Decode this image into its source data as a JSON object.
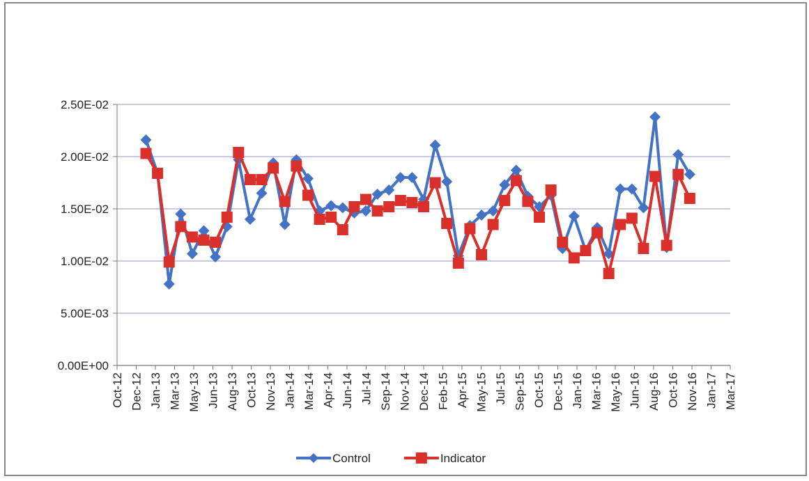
{
  "chart_data": {
    "type": "line",
    "x": [
      "Dec-12",
      "Jan-13",
      "Feb-13",
      "Mar-13",
      "Apr-13",
      "May-13",
      "Jun-13",
      "Jul-13",
      "Aug-13",
      "Sep-13",
      "Oct-13",
      "Nov-13",
      "Dec-13",
      "Jan-14",
      "Feb-14",
      "Mar-14",
      "Apr-14",
      "May-14",
      "Jun-14",
      "Jul-14",
      "Aug-14",
      "Sep-14",
      "Oct-14",
      "Nov-14",
      "Dec-14",
      "Jan-15",
      "Feb-15",
      "Mar-15",
      "Apr-15",
      "May-15",
      "Jun-15",
      "Jul-15",
      "Aug-15",
      "Sep-15",
      "Oct-15",
      "Nov-15",
      "Dec-15",
      "Jan-16",
      "Feb-16",
      "Mar-16",
      "Apr-16",
      "May-16",
      "Jun-16",
      "Jul-16",
      "Aug-16",
      "Sep-16",
      "Oct-16",
      "Nov-16"
    ],
    "series": [
      {
        "name": "Control",
        "color": "#4472c4",
        "marker": "diamond",
        "values": [
          0.0216,
          0.0184,
          0.0078,
          0.0145,
          0.0107,
          0.0129,
          0.0104,
          0.0133,
          0.0197,
          0.014,
          0.0165,
          0.0194,
          0.0135,
          0.0197,
          0.0179,
          0.0148,
          0.0153,
          0.0151,
          0.0146,
          0.0148,
          0.0164,
          0.0168,
          0.018,
          0.018,
          0.0159,
          0.0211,
          0.0176,
          0.0105,
          0.0134,
          0.0144,
          0.0148,
          0.0173,
          0.0187,
          0.0162,
          0.0152,
          0.0163,
          0.0112,
          0.0143,
          0.011,
          0.0132,
          0.0107,
          0.0169,
          0.0169,
          0.0151,
          0.0238,
          0.0113,
          0.0202,
          0.0183
        ]
      },
      {
        "name": "Indicator",
        "color": "#d9302b",
        "marker": "square",
        "values": [
          0.0203,
          0.0184,
          0.0099,
          0.0133,
          0.0123,
          0.012,
          0.0118,
          0.0142,
          0.0204,
          0.0178,
          0.0178,
          0.0189,
          0.0157,
          0.0191,
          0.0163,
          0.014,
          0.0142,
          0.013,
          0.0152,
          0.0159,
          0.0148,
          0.0152,
          0.0158,
          0.0156,
          0.0152,
          0.0175,
          0.0136,
          0.0098,
          0.0131,
          0.0106,
          0.0135,
          0.0158,
          0.0177,
          0.0157,
          0.0142,
          0.0168,
          0.0118,
          0.0103,
          0.011,
          0.0127,
          0.0088,
          0.0135,
          0.0141,
          0.0112,
          0.0181,
          0.0115,
          0.0183,
          0.016
        ]
      }
    ],
    "xlim": [
      "Oct-12",
      "Mar-17"
    ],
    "xticks": [
      "Oct-12",
      "Dec-12",
      "Jan-13",
      "Mar-13",
      "May-13",
      "Jun-13",
      "Aug-13",
      "Oct-13",
      "Nov-13",
      "Jan-14",
      "Mar-14",
      "Apr-14",
      "Jun-14",
      "Jul-14",
      "Sep-14",
      "Nov-14",
      "Dec-14",
      "Feb-15",
      "Apr-15",
      "May-15",
      "Jul-15",
      "Sep-15",
      "Oct-15",
      "Dec-15",
      "Jan-16",
      "Mar-16",
      "May-16",
      "Jun-16",
      "Aug-16",
      "Oct-16",
      "Nov-16",
      "Jan-17",
      "Mar-17"
    ],
    "ylim": [
      0,
      0.025
    ],
    "yticks": [
      {
        "value": 0,
        "label": "0.00E+00"
      },
      {
        "value": 0.005,
        "label": "5.00E-03"
      },
      {
        "value": 0.01,
        "label": "1.00E-02"
      },
      {
        "value": 0.015,
        "label": "1.50E-02"
      },
      {
        "value": 0.02,
        "label": "2.00E-02"
      },
      {
        "value": 0.025,
        "label": "2.50E-02"
      }
    ],
    "grid": true,
    "legend": "bottom"
  }
}
